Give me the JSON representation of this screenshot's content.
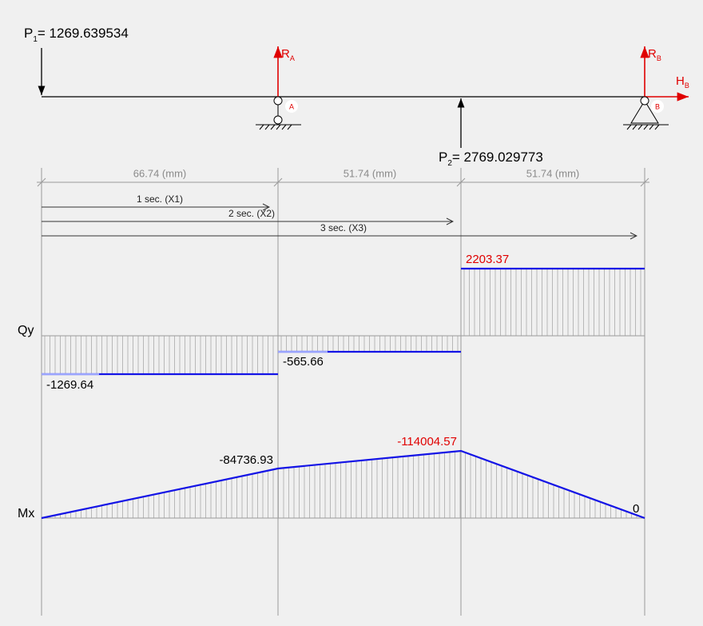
{
  "loads": [
    {
      "symbol": "P",
      "index": "1",
      "value": "= 1269.639534"
    },
    {
      "symbol": "P",
      "index": "2",
      "value": "= 2769.029773"
    }
  ],
  "reactions": [
    {
      "symbol": "R",
      "index": "A"
    },
    {
      "symbol": "R",
      "index": "B"
    },
    {
      "symbol": "H",
      "index": "B"
    }
  ],
  "supports": [
    "A",
    "B"
  ],
  "dimensions": [
    "66.74 (mm)",
    "51.74 (mm)",
    "51.74 (mm)"
  ],
  "sections": [
    "1 sec. (X1)",
    "2 sec. (X2)",
    "3 sec. (X3)"
  ],
  "qy": {
    "label": "Qy",
    "values": [
      "-1269.64",
      "-565.66",
      "2203.37"
    ]
  },
  "mx": {
    "label": "Mx",
    "values": [
      "-84736.93",
      "-114004.57",
      "0"
    ]
  }
}
